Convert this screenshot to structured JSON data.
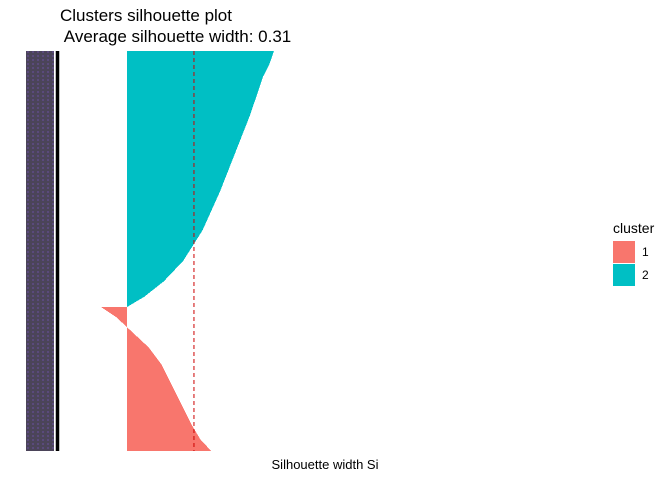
{
  "chart_data": {
    "type": "bar",
    "orientation": "horizontal",
    "title": "Clusters silhouette plot",
    "subtitle": "Average silhouette width: 0.31",
    "xlabel": "Silhouette width Si",
    "ylabel": "",
    "average_silhouette_width": 0.31,
    "reference_line": {
      "value": 0.31,
      "style": "dashed",
      "color": "#cc0000"
    },
    "xlim": [
      -0.12,
      0.68
    ],
    "grid": false,
    "legend": {
      "title": "cluster",
      "position": "right"
    },
    "series": [
      {
        "name": "1",
        "color": "#F8766D",
        "profile": [
          {
            "rank": 0.0,
            "width": -0.12
          },
          {
            "rank": 0.07,
            "width": -0.05
          },
          {
            "rank": 0.14,
            "width": 0.0
          },
          {
            "rank": 0.28,
            "width": 0.1
          },
          {
            "rank": 0.4,
            "width": 0.16
          },
          {
            "rank": 0.55,
            "width": 0.21
          },
          {
            "rank": 0.7,
            "width": 0.26
          },
          {
            "rank": 0.82,
            "width": 0.3
          },
          {
            "rank": 0.92,
            "width": 0.34
          },
          {
            "rank": 1.0,
            "width": 0.39
          }
        ]
      },
      {
        "name": "2",
        "color": "#00BFC4",
        "profile": [
          {
            "rank": 0.0,
            "width": 0.68
          },
          {
            "rank": 0.05,
            "width": 0.66
          },
          {
            "rank": 0.1,
            "width": 0.63
          },
          {
            "rank": 0.25,
            "width": 0.57
          },
          {
            "rank": 0.4,
            "width": 0.5
          },
          {
            "rank": 0.55,
            "width": 0.43
          },
          {
            "rank": 0.7,
            "width": 0.35
          },
          {
            "rank": 0.82,
            "width": 0.26
          },
          {
            "rank": 0.9,
            "width": 0.17
          },
          {
            "rank": 0.96,
            "width": 0.08
          },
          {
            "rank": 1.0,
            "width": 0.0
          }
        ]
      }
    ]
  }
}
